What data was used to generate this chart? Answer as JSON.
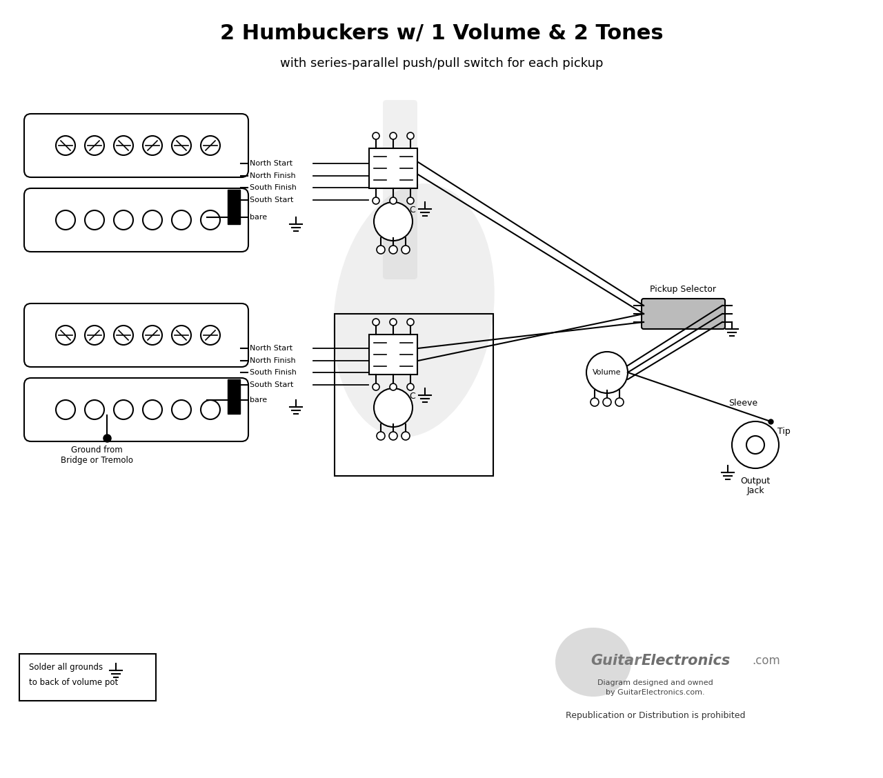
{
  "title": "2 Humbuckers w/ 1 Volume & 2 Tones",
  "subtitle": "with series-parallel push/pull switch for each pickup",
  "bg_color": "#ffffff",
  "line_color": "#000000",
  "title_fontsize": 22,
  "subtitle_fontsize": 13,
  "watermark_line1": "Diagram designed and owned",
  "watermark_line2": "by GuitarElectronics.com.",
  "watermark_line3": "Republication or Distribution is prohibited",
  "note_line1": "Solder all grounds",
  "note_line2": "to back of volume pot",
  "wire_labels_top": [
    "North Start",
    "North Finish",
    "South Finish",
    "South Start"
  ],
  "wire_labels_bot": [
    "North Start",
    "North Finish",
    "South Finish",
    "South Start"
  ],
  "label_bare": "bare",
  "label_ground_from": "Ground from",
  "label_bridge": "Bridge or Tremolo",
  "label_pickup_selector": "Pickup Selector",
  "label_volume": "Volume",
  "label_sleeve": "Sleeve",
  "label_tip": "Tip",
  "label_output1": "Output",
  "label_output2": "Jack"
}
